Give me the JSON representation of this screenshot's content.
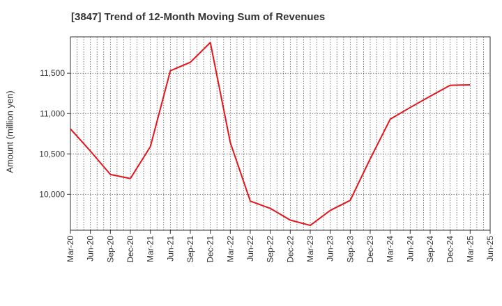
{
  "chart_data": {
    "type": "line",
    "title": "[3847]  Trend of 12-Month Moving Sum of Revenues",
    "xlabel": "",
    "ylabel": "Amount (million yen)",
    "x_tick_labels": [
      "Mar-20",
      "Jun-20",
      "Sep-20",
      "Dec-20",
      "Mar-21",
      "Jun-21",
      "Sep-21",
      "Dec-21",
      "Mar-22",
      "Jun-22",
      "Sep-22",
      "Dec-22",
      "Mar-23",
      "Jun-23",
      "Sep-23",
      "Dec-23",
      "Mar-24",
      "Jun-24",
      "Sep-24",
      "Dec-24",
      "Mar-25",
      "Jun-25"
    ],
    "y_ticks": [
      10000,
      10500,
      11000,
      11500
    ],
    "y_tick_labels": [
      "10,000",
      "10,500",
      "11,000",
      "11,500"
    ],
    "ylim": [
      9555,
      11950
    ],
    "grid": true,
    "series": [
      {
        "color": "#e8141c",
        "x": [
          "Mar-20",
          "Jun-20",
          "Sep-20",
          "Dec-20",
          "Mar-21",
          "Jun-21",
          "Sep-21",
          "Dec-21",
          "Mar-22",
          "Jun-22",
          "Sep-22",
          "Dec-22",
          "Mar-23",
          "Jun-23",
          "Sep-23",
          "Dec-23",
          "Mar-24",
          "Jun-24",
          "Sep-24",
          "Dec-24",
          "Mar-25"
        ],
        "values": [
          10810,
          10535,
          10245,
          10195,
          10590,
          11530,
          11635,
          11880,
          10640,
          9915,
          9825,
          9680,
          9615,
          9800,
          9925,
          10440,
          10930,
          11075,
          11215,
          11350,
          11355
        ]
      }
    ]
  }
}
